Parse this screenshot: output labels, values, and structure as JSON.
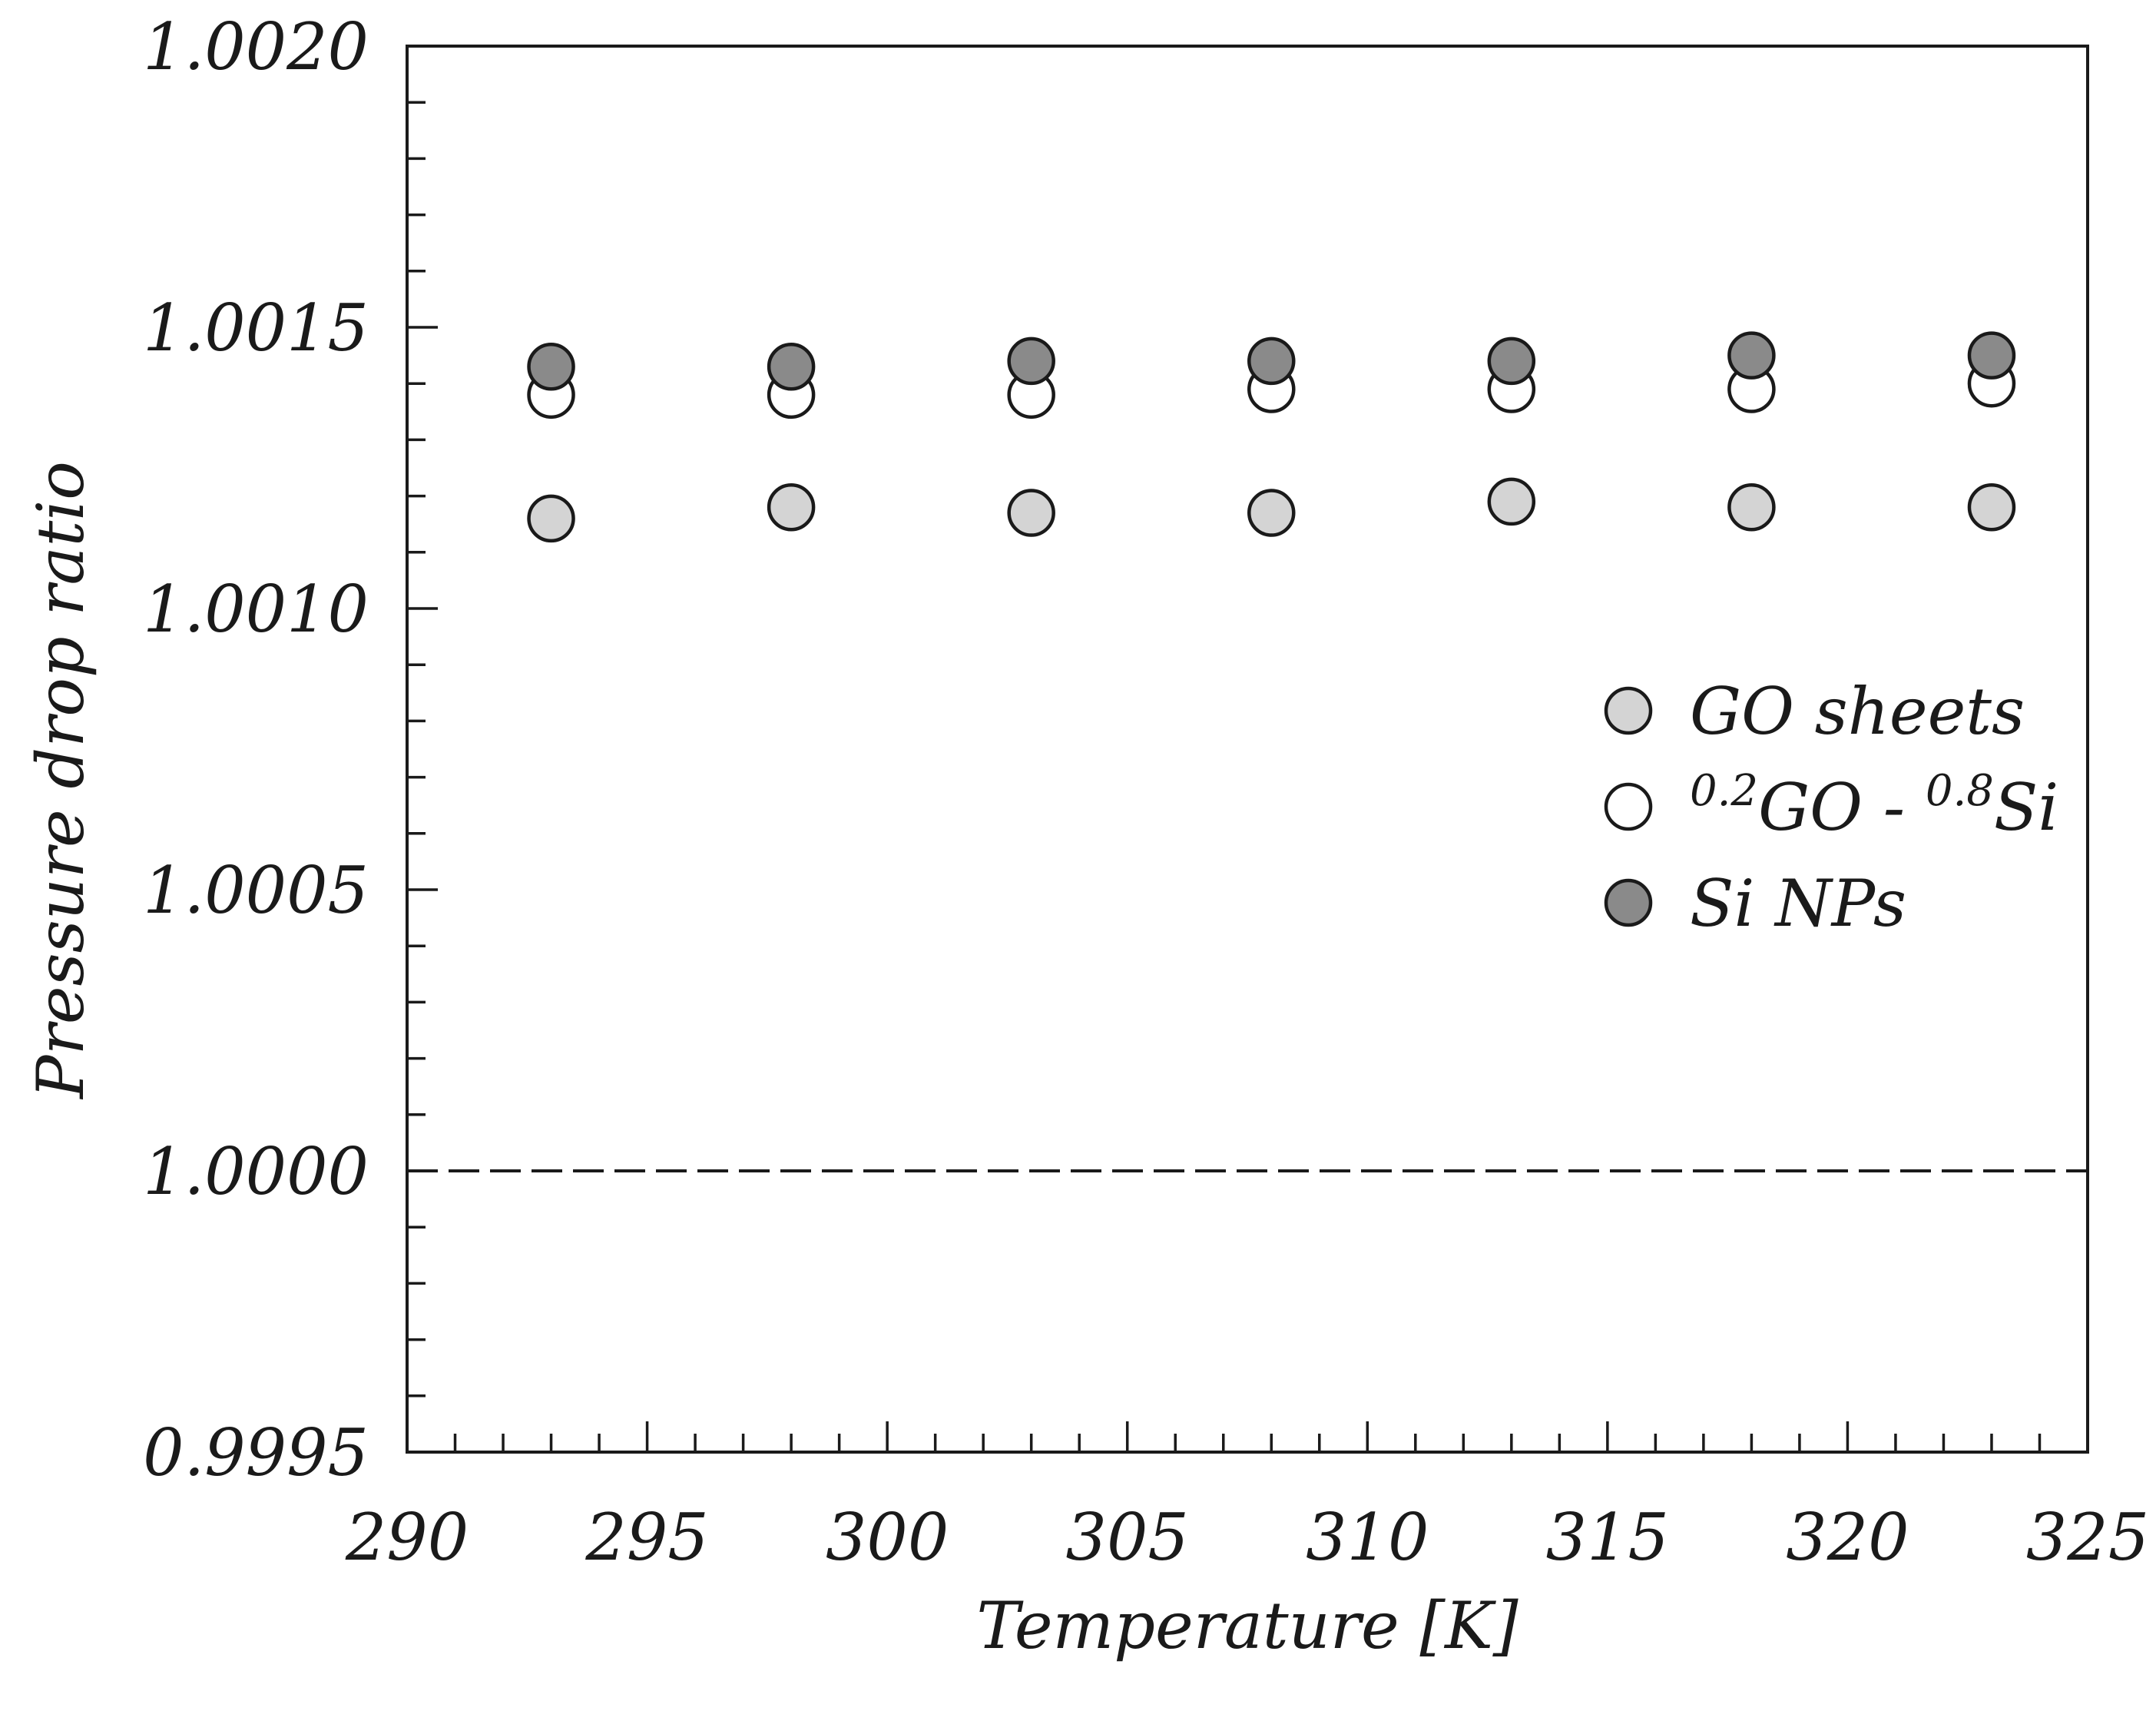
{
  "chart_data": {
    "type": "scatter",
    "title": "",
    "xlabel": "Temperature [K]",
    "ylabel": "Pressure drop ratio",
    "xlim": [
      290,
      325
    ],
    "ylim": [
      0.9995,
      1.002
    ],
    "x_ticks": [
      "290",
      "295",
      "300",
      "305",
      "310",
      "315",
      "320",
      "325"
    ],
    "y_ticks": [
      "1.0020",
      "1.0015",
      "1.0010",
      "1.0005",
      "1.0000",
      "0.9995"
    ],
    "x_minor_step": 1,
    "y_minor_step": 0.0001,
    "reference_line": {
      "y": 1.0,
      "style": "dashed"
    },
    "legend_position": "center-right",
    "series": [
      {
        "name": "GO sheets",
        "name_parts": [
          {
            "text": "GO sheets",
            "sup": false
          }
        ],
        "color": "#d4d4d4",
        "x": [
          293,
          298,
          303,
          308,
          313,
          318,
          323
        ],
        "y": [
          1.00116,
          1.00118,
          1.00117,
          1.00117,
          1.00119,
          1.00118,
          1.00118
        ]
      },
      {
        "name": "0.2GO - 0.8Si",
        "name_parts": [
          {
            "text": "0.2",
            "sup": true
          },
          {
            "text": "GO - ",
            "sup": false
          },
          {
            "text": "0.8",
            "sup": true
          },
          {
            "text": "Si",
            "sup": false
          }
        ],
        "color": "#ffffff",
        "x": [
          293,
          298,
          303,
          308,
          313,
          318,
          323
        ],
        "y": [
          1.00138,
          1.00138,
          1.00138,
          1.00139,
          1.00139,
          1.00139,
          1.0014
        ]
      },
      {
        "name": "Si NPs",
        "name_parts": [
          {
            "text": "Si NPs",
            "sup": false
          }
        ],
        "color": "#8a8a8a",
        "x": [
          293,
          298,
          303,
          308,
          313,
          318,
          323
        ],
        "y": [
          1.00143,
          1.00143,
          1.00144,
          1.00144,
          1.00144,
          1.00145,
          1.00145
        ]
      }
    ]
  }
}
